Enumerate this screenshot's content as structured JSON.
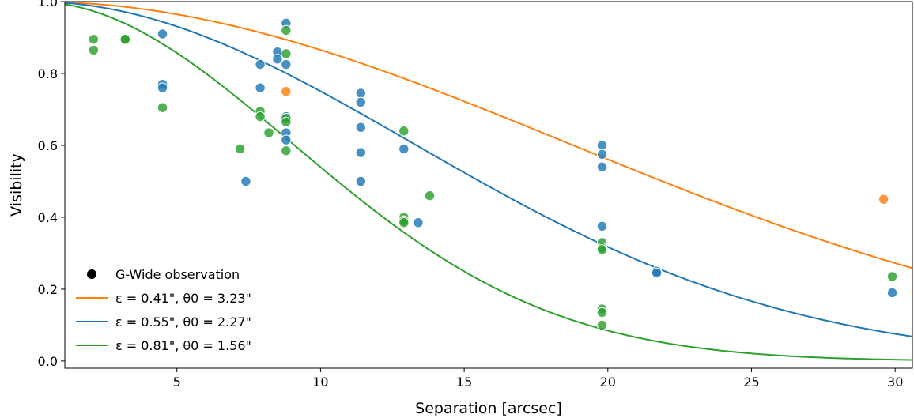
{
  "chart_data": {
    "type": "scatter",
    "xlabel": "Separation [arcsec]",
    "ylabel": "Visibility",
    "xlim": [
      1.1,
      30.6
    ],
    "ylim": [
      -0.02,
      1.0
    ],
    "xticks": [
      5,
      10,
      15,
      20,
      25,
      30
    ],
    "xtick_labels": [
      "5",
      "10",
      "15",
      "20",
      "25",
      "30"
    ],
    "yticks": [
      0.0,
      0.2,
      0.4,
      0.6,
      0.8,
      1.0
    ],
    "ytick_labels": [
      "0.0",
      "0.2",
      "0.4",
      "0.6",
      "0.8",
      "1.0"
    ],
    "grid": false,
    "legend_position": "lower-left",
    "legend": [
      {
        "kind": "marker",
        "label": "G-Wide observation",
        "color": "#000000"
      },
      {
        "kind": "line",
        "label": "ε = 0.41\", θ0 = 3.23\"",
        "color": "#ff7f0e"
      },
      {
        "kind": "line",
        "label": "ε = 0.55\", θ0 = 2.27\"",
        "color": "#1f77b4"
      },
      {
        "kind": "line",
        "label": "ε = 0.81\", θ0 = 1.56\"",
        "color": "#2ca02c"
      }
    ],
    "series": [
      {
        "color": "#ff7f0e",
        "curve": {
          "sigma": 18.6
        },
        "points": [
          [
            8.8,
            0.75
          ],
          [
            29.6,
            0.45
          ]
        ]
      },
      {
        "color": "#1f77b4",
        "curve": {
          "sigma": 13.2
        },
        "points": [
          [
            4.5,
            0.91
          ],
          [
            4.5,
            0.77
          ],
          [
            4.5,
            0.76
          ],
          [
            7.4,
            0.5
          ],
          [
            7.9,
            0.825
          ],
          [
            7.9,
            0.76
          ],
          [
            8.5,
            0.86
          ],
          [
            8.5,
            0.84
          ],
          [
            8.8,
            0.94
          ],
          [
            8.8,
            0.825
          ],
          [
            8.8,
            0.68
          ],
          [
            8.8,
            0.675
          ],
          [
            8.8,
            0.635
          ],
          [
            8.8,
            0.615
          ],
          [
            11.4,
            0.745
          ],
          [
            11.4,
            0.72
          ],
          [
            11.4,
            0.65
          ],
          [
            11.4,
            0.58
          ],
          [
            11.4,
            0.5
          ],
          [
            12.9,
            0.59
          ],
          [
            13.4,
            0.385
          ],
          [
            19.8,
            0.6
          ],
          [
            19.8,
            0.575
          ],
          [
            19.8,
            0.54
          ],
          [
            19.8,
            0.375
          ],
          [
            21.7,
            0.25
          ],
          [
            21.7,
            0.245
          ],
          [
            29.9,
            0.19
          ]
        ]
      },
      {
        "color": "#2ca02c",
        "curve": {
          "sigma": 9.0
        },
        "points": [
          [
            2.1,
            0.895
          ],
          [
            2.1,
            0.865
          ],
          [
            3.2,
            0.895
          ],
          [
            3.2,
            0.895
          ],
          [
            4.5,
            0.705
          ],
          [
            7.2,
            0.59
          ],
          [
            7.9,
            0.695
          ],
          [
            7.9,
            0.68
          ],
          [
            8.2,
            0.635
          ],
          [
            8.8,
            0.92
          ],
          [
            8.8,
            0.855
          ],
          [
            8.8,
            0.675
          ],
          [
            8.8,
            0.665
          ],
          [
            8.8,
            0.585
          ],
          [
            12.9,
            0.64
          ],
          [
            12.9,
            0.4
          ],
          [
            12.9,
            0.39
          ],
          [
            12.9,
            0.385
          ],
          [
            13.8,
            0.46
          ],
          [
            19.8,
            0.33
          ],
          [
            19.8,
            0.315
          ],
          [
            19.8,
            0.31
          ],
          [
            19.8,
            0.145
          ],
          [
            19.8,
            0.135
          ],
          [
            19.8,
            0.1
          ],
          [
            29.9,
            0.235
          ]
        ]
      }
    ]
  }
}
